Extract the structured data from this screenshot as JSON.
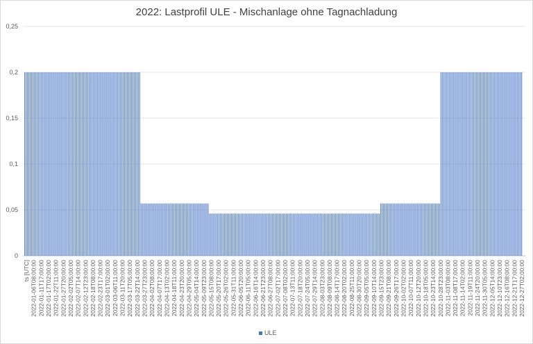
{
  "chart_data": {
    "type": "bar",
    "title": "2022: Lastprofil ULE - Mischanlage ohne Tagnachladung",
    "xlabel": "",
    "ylabel": "",
    "ylim": [
      0,
      0.25
    ],
    "yticks": [
      0,
      0.05,
      0.1,
      0.15,
      0.2,
      0.25
    ],
    "ytick_labels": [
      "0",
      "0,05",
      "0,1",
      "0,15",
      "0,2",
      "0,25"
    ],
    "grid": true,
    "legend_position": "bottom",
    "x_tick_labels": [
      "ts [UTC]",
      "2022-01-06T08:00:00",
      "2022-01-11T17:00:00",
      "2022-01-17T02:00:00",
      "2022-01-22T11:00:00",
      "2022-01-27T20:00:00",
      "2022-02-02T05:00:00",
      "2022-02-07T14:00:00",
      "2022-02-12T23:00:00",
      "2022-02-18T08:00:00",
      "2022-02-23T17:00:00",
      "2022-03-01T02:00:00",
      "2022-03-06T11:00:00",
      "2022-03-11T20:00:00",
      "2022-03-17T05:00:00",
      "2022-03-22T14:00:00",
      "2022-03-27T23:00:00",
      "2022-04-02T08:00:00",
      "2022-04-07T17:00:00",
      "2022-04-13T02:00:00",
      "2022-04-18T11:00:00",
      "2022-04-23T20:00:00",
      "2022-04-29T05:00:00",
      "2022-05-04T14:00:00",
      "2022-05-09T23:00:00",
      "2022-05-15T08:00:00",
      "2022-05-20T17:00:00",
      "2022-05-26T02:00:00",
      "2022-05-31T11:00:00",
      "2022-06-05T20:00:00",
      "2022-06-11T05:00:00",
      "2022-06-16T14:00:00",
      "2022-06-21T23:00:00",
      "2022-06-27T08:00:00",
      "2022-07-02T17:00:00",
      "2022-07-08T02:00:00",
      "2022-07-13T11:00:00",
      "2022-07-18T20:00:00",
      "2022-07-24T05:00:00",
      "2022-07-29T14:00:00",
      "2022-08-03T23:00:00",
      "2022-08-09T08:00:00",
      "2022-08-14T17:00:00",
      "2022-08-20T02:00:00",
      "2022-08-25T11:00:00",
      "2022-08-30T20:00:00",
      "2022-09-05T05:00:00",
      "2022-09-10T14:00:00",
      "2022-09-15T23:00:00",
      "2022-09-21T08:00:00",
      "2022-09-26T17:00:00",
      "2022-10-02T02:00:00",
      "2022-10-07T11:00:00",
      "2022-10-12T20:00:00",
      "2022-10-18T05:00:00",
      "2022-10-23T14:00:00",
      "2022-10-28T23:00:00",
      "2022-11-03T08:00:00",
      "2022-11-08T17:00:00",
      "2022-11-14T02:00:00",
      "2022-11-19T11:00:00",
      "2022-11-24T20:00:00",
      "2022-11-30T05:00:00",
      "2022-12-05T14:00:00",
      "2022-12-10T23:00:00",
      "2022-12-16T08:00:00",
      "2022-12-21T17:00:00",
      "2022-12-27T02:00:00"
    ],
    "series": [
      {
        "name": "ULE",
        "color": "#4472c4",
        "segments": [
          {
            "from": "2022-01-01",
            "to": "2022-03-27",
            "value": 0.2
          },
          {
            "from": "2022-03-27",
            "to": "2022-05-16",
            "value": 0.057
          },
          {
            "from": "2022-05-16",
            "to": "2022-09-18",
            "value": 0.046
          },
          {
            "from": "2022-09-18",
            "to": "2022-11-01",
            "value": 0.057
          },
          {
            "from": "2022-11-01",
            "to": "2022-12-31",
            "value": 0.2
          }
        ]
      }
    ]
  }
}
